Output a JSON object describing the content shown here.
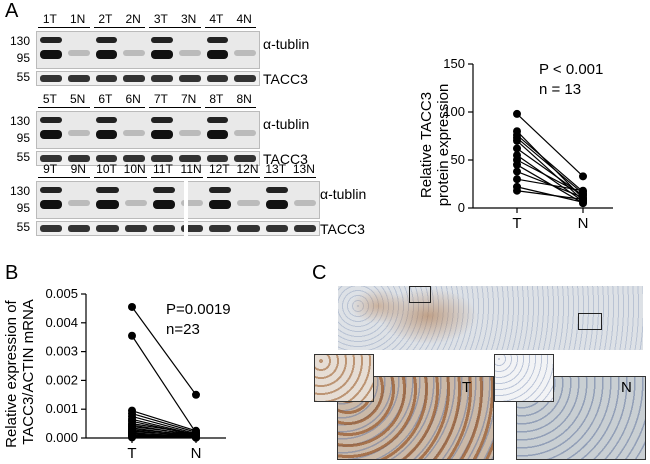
{
  "panels": {
    "a": {
      "letter": "A",
      "blots": [
        {
          "lanes": [
            "1T",
            "1N",
            "2T",
            "2N",
            "3T",
            "3N",
            "4T",
            "4N"
          ],
          "mw_top": [
            "130",
            "95"
          ],
          "mw_bottom": "55",
          "top_protein": "α-tublin",
          "bottom_protein": "TACC3"
        },
        {
          "lanes": [
            "5T",
            "5N",
            "6T",
            "6N",
            "7T",
            "7N",
            "8T",
            "8N"
          ],
          "mw_top": [
            "130",
            "95"
          ],
          "mw_bottom": "55",
          "top_protein": "α-tublin",
          "bottom_protein": "TACC3"
        },
        {
          "lanes": [
            "9T",
            "9N",
            "10T",
            "10N",
            "11T",
            "11N",
            "12T",
            "12N",
            "13T",
            "13N"
          ],
          "mw_top": [
            "130",
            "95"
          ],
          "mw_bottom": "55",
          "top_protein": "α-tublin",
          "bottom_protein": "TACC3"
        }
      ]
    },
    "b": {
      "letter": "B"
    },
    "c": {
      "letter": "C",
      "label_t": "T",
      "label_n": "N",
      "colors": {
        "brown_stain": "#9a5a2a",
        "hematoxylin": "#8a9ab8",
        "background": "#d9dde2"
      }
    }
  },
  "chart_data": [
    {
      "type": "scatter",
      "subtype": "paired-dot",
      "categories": [
        "T",
        "N"
      ],
      "ylabel": "Relative TACC3 protein expression",
      "ylim": [
        0,
        150
      ],
      "yticks": [
        "0",
        "50",
        "100",
        "150"
      ],
      "annotation": [
        "P < 0.001",
        "n = 13"
      ],
      "pairs": [
        [
          98,
          33
        ],
        [
          80,
          10
        ],
        [
          76,
          17
        ],
        [
          73,
          15
        ],
        [
          70,
          8
        ],
        [
          62,
          13
        ],
        [
          55,
          7
        ],
        [
          50,
          14
        ],
        [
          45,
          5
        ],
        [
          38,
          11
        ],
        [
          30,
          18
        ],
        [
          22,
          6
        ],
        [
          18,
          9
        ]
      ]
    },
    {
      "type": "scatter",
      "subtype": "paired-dot",
      "categories": [
        "T",
        "N"
      ],
      "ylabel": "Relative expression of TACC3/ACTIN mRNA",
      "ylim": [
        0,
        0.005
      ],
      "yticks": [
        "0.000",
        "0.001",
        "0.002",
        "0.003",
        "0.004",
        "0.005"
      ],
      "annotation": [
        "P=0.0019",
        "n=23"
      ],
      "pairs": [
        [
          0.00455,
          0.0015
        ],
        [
          0.00355,
          0.00018
        ],
        [
          0.00095,
          0.00025
        ],
        [
          0.00085,
          0.0002
        ],
        [
          0.00075,
          0.00015
        ],
        [
          0.00065,
          0.00012
        ],
        [
          0.00058,
          0.0001
        ],
        [
          0.0005,
          0.00014
        ],
        [
          0.00045,
          8e-05
        ],
        [
          0.0004,
          0.00012
        ],
        [
          0.00035,
          6e-05
        ],
        [
          0.0003,
          0.0001
        ],
        [
          0.00026,
          5e-05
        ],
        [
          0.00022,
          9e-05
        ],
        [
          0.00018,
          4e-05
        ],
        [
          0.00015,
          7e-05
        ],
        [
          0.00012,
          3e-05
        ],
        [
          0.0001,
          5e-05
        ],
        [
          8e-05,
          2e-05
        ],
        [
          6e-05,
          4e-05
        ],
        [
          5e-05,
          2e-05
        ],
        [
          3e-05,
          1e-05
        ],
        [
          2e-05,
          1e-05
        ]
      ]
    }
  ]
}
